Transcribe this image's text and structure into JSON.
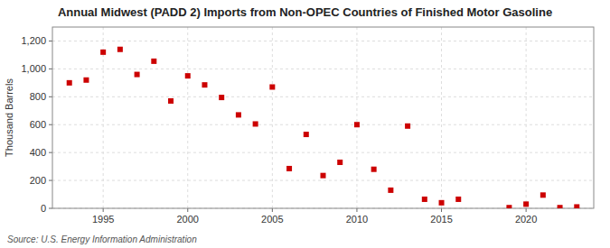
{
  "chart_data": {
    "type": "scatter",
    "title": "Annual Midwest (PADD 2) Imports from Non-OPEC Countries of Finished Motor Gasoline",
    "y_label": "Thousand Barrels",
    "annotation": "Source: U.S. Energy Information Administration",
    "x": [
      1993,
      1994,
      1995,
      1996,
      1997,
      1998,
      1999,
      2000,
      2001,
      2002,
      2003,
      2004,
      2005,
      2006,
      2007,
      2008,
      2009,
      2010,
      2011,
      2012,
      2013,
      2014,
      2015,
      2016,
      2019,
      2020,
      2021,
      2022,
      2023
    ],
    "values": [
      900,
      920,
      1120,
      1140,
      960,
      1055,
      770,
      950,
      885,
      795,
      670,
      605,
      870,
      285,
      530,
      235,
      330,
      600,
      280,
      130,
      590,
      65,
      40,
      65,
      5,
      30,
      95,
      5,
      10
    ],
    "color": "#cc0000",
    "marker": "square",
    "xlim": [
      1992,
      2024
    ],
    "ylim": [
      0,
      1300
    ],
    "xticks": [
      1995,
      2000,
      2005,
      2010,
      2015,
      2020
    ],
    "yticks": [
      0,
      200,
      400,
      600,
      800,
      {
        "value": 1000,
        "label": "1,000"
      },
      {
        "value": 1200,
        "label": "1,200"
      }
    ],
    "grid": true
  }
}
